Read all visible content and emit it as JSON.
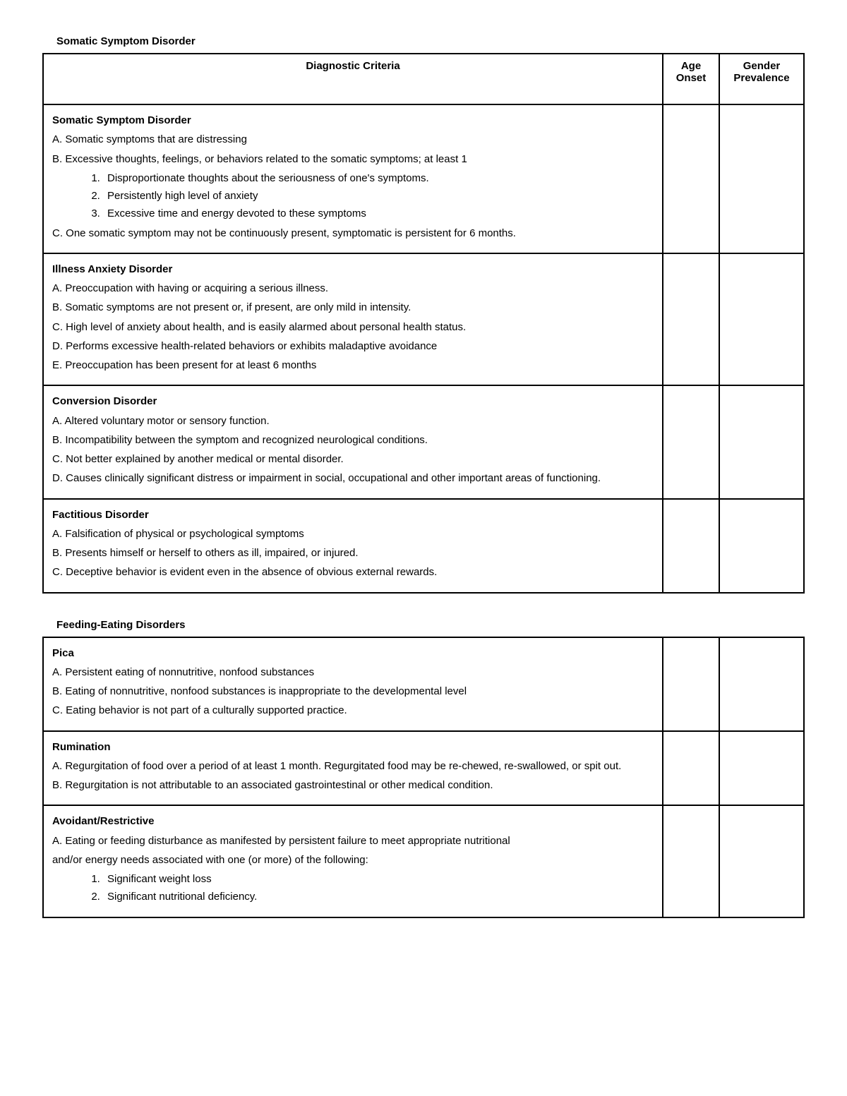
{
  "section1": {
    "title": "Somatic Symptom Disorder",
    "headers": {
      "criteria": "Diagnostic Criteria",
      "age": "Age Onset",
      "gender": "Gender Prevalence"
    },
    "rows": [
      {
        "name": "Somatic Symptom Disorder",
        "critA": "A. Somatic symptoms that are distressing",
        "critB": "B. Excessive thoughts, feelings, or behaviors related to the somatic symptoms; at least 1",
        "sub1": "Disproportionate thoughts about the seriousness of one's symptoms.",
        "sub2": "Persistently high level of anxiety",
        "sub3": "Excessive time and energy devoted to these symptoms",
        "critC": "C. One somatic symptom may not be continuously present, symptomatic is persistent for 6 months."
      },
      {
        "name": "Illness Anxiety Disorder",
        "critA": "A. Preoccupation with having or acquiring a serious illness.",
        "critB": "B. Somatic symptoms are not present or, if present, are only mild in intensity.",
        "critC": "C. High level of anxiety about health, and is easily alarmed about personal health status.",
        "critD": "D. Performs excessive health-related behaviors or exhibits maladaptive avoidance",
        "critE": "E. Preoccupation has been present for at least 6 months"
      },
      {
        "name": "Conversion Disorder",
        "critA": "A. Altered voluntary motor or sensory function.",
        "critB": "B. Incompatibility between the symptom and recognized neurological conditions.",
        "critC": "C. Not better explained by another medical or mental disorder.",
        "critD": "D. Causes clinically significant distress or impairment in social, occupational and other important areas of functioning."
      },
      {
        "name": "Factitious Disorder",
        "critA": "A. Falsification of physical or psychological symptoms",
        "critB": "B. Presents himself or herself to others as ill, impaired, or injured.",
        "critC": "C. Deceptive behavior is evident even in the absence of obvious external rewards."
      }
    ]
  },
  "section2": {
    "title": "Feeding-Eating Disorders",
    "rows": [
      {
        "name": "Pica",
        "critA": "A. Persistent eating of nonnutritive, nonfood substances",
        "critB": "B. Eating of nonnutritive, nonfood substances is inappropriate to the developmental level",
        "critC": "C. Eating behavior is not part of a culturally supported practice."
      },
      {
        "name": "Rumination",
        "critA": "A. Regurgitation of food over a period of at least 1 month. Regurgitated food may be re-chewed, re-swallowed, or spit out.",
        "critB": "B. Regurgitation is not attributable to an associated gastrointestinal or other medical condition."
      },
      {
        "name": "Avoidant/Restrictive",
        "critA": "A. Eating or feeding disturbance as manifested by persistent failure to meet appropriate nutritional",
        "critA2": "and/or energy needs associated with one (or more) of the following:",
        "sub1": "Significant weight loss",
        "sub2": "Significant nutritional deficiency."
      }
    ]
  },
  "style": {
    "background_color": "#ffffff",
    "text_color": "#000000",
    "border_color": "#000000",
    "border_width": 2,
    "font_family": "Arial",
    "body_font_size": 15,
    "line_height": 1.55,
    "col_widths": {
      "criteria": "auto",
      "age": 80,
      "gender": 120
    }
  }
}
